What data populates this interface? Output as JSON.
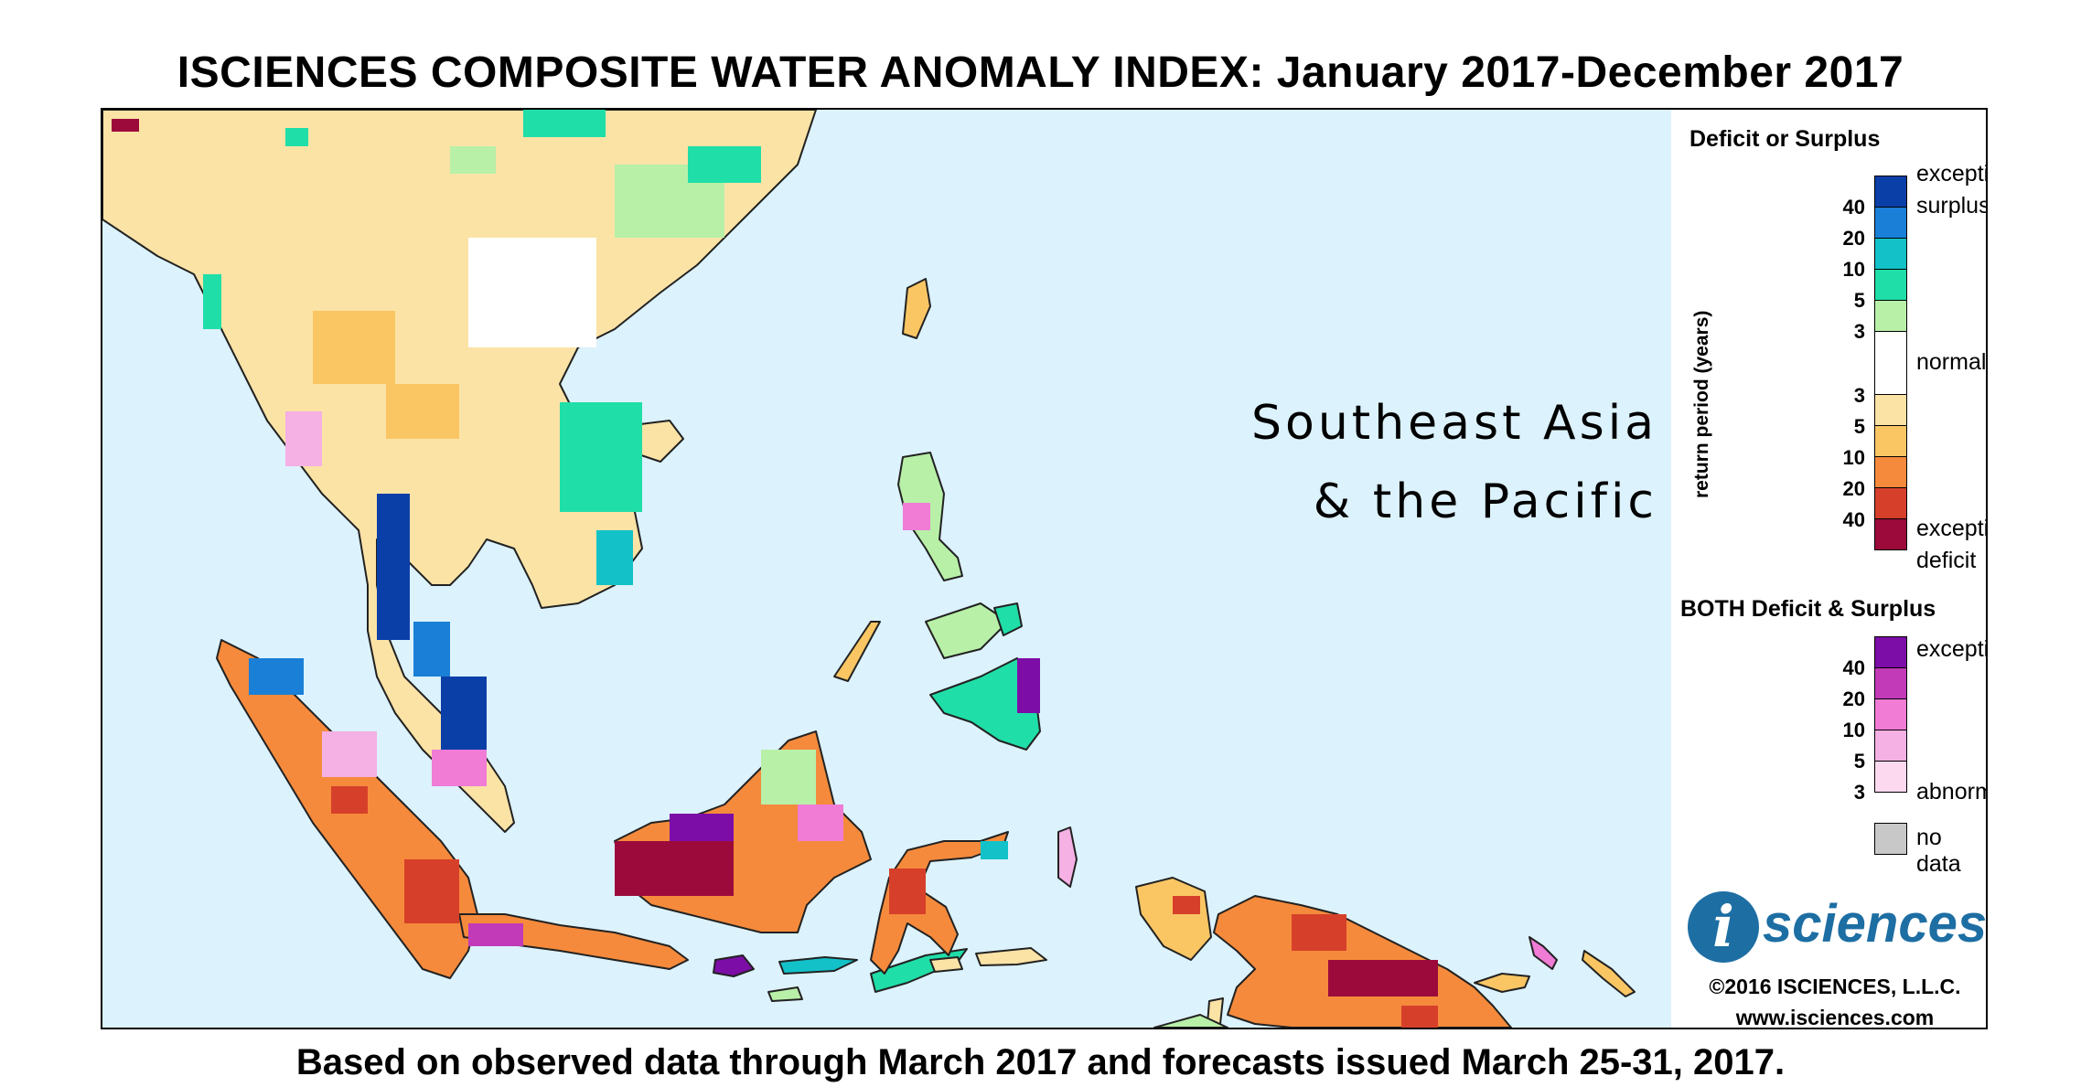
{
  "title": "ISCIENCES COMPOSITE WATER ANOMALY INDEX: January 2017-December 2017",
  "footer": "Based on observed data through March 2017 and forecasts issued March 25-31, 2017.",
  "map": {
    "region_line1": "Southeast Asia",
    "region_line2": "& the Pacific",
    "ocean_color": "#dcf2fc"
  },
  "legend": {
    "deficit_surplus_title": "Deficit or Surplus",
    "axis_label": "return period (years)",
    "surplus_ticks": [
      "40",
      "20",
      "10",
      "5",
      "3"
    ],
    "deficit_ticks": [
      "3",
      "5",
      "10",
      "20",
      "40"
    ],
    "label_exceptional_surplus_1": "exceptional",
    "label_exceptional_surplus_2": "surplus",
    "label_normal": "normal",
    "label_exceptional_deficit_1": "exceptional",
    "label_exceptional_deficit_2": "deficit",
    "both_title": "BOTH Deficit & Surplus",
    "both_ticks": [
      "40",
      "20",
      "10",
      "5",
      "3"
    ],
    "label_both_exceptional": "exceptional",
    "label_both_abnormal": "abnormal",
    "label_no_data": "no data",
    "surplus_colors": [
      "#0b3fa8",
      "#1a7fd6",
      "#12c2c8",
      "#20dea8",
      "#b8f0a8"
    ],
    "normal_color": "#ffffff",
    "deficit_colors": [
      "#fbe3a6",
      "#fac664",
      "#f58a3c",
      "#d6402a",
      "#9c0a3c"
    ],
    "both_colors": [
      "#7c0da6",
      "#c23ab8",
      "#f07cd6",
      "#f5b0e4",
      "#fcd9ee"
    ],
    "no_data_color": "#c8c8c8"
  },
  "branding": {
    "logo_letter": "i",
    "logo_text": "sciences",
    "copyright": "©2016 ISCIENCES, L.L.C.",
    "website": "www.isciences.com"
  }
}
